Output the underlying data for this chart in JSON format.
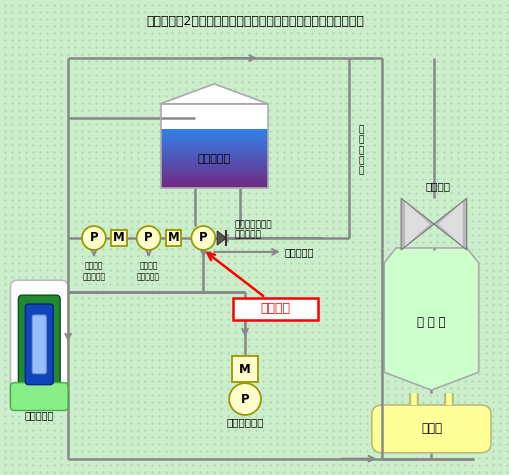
{
  "title": "伊方発電所2号機　タービン動補助給水ポンプまわり概略系統図",
  "bg_color": "#cceecc",
  "lc": "#888888",
  "pump_fill": "#ffffcc",
  "pump_edge": "#999900",
  "condenser_fill": "#ccffcc",
  "condenser_edge": "#aaaaaa",
  "tank_water_top": "#ddeeff",
  "tank_water_bot": "#3377dd",
  "deae_fill": "#ffff99",
  "deae_edge": "#bbbb77",
  "turbine_gray1": "#cccccc",
  "turbine_gray2": "#888888",
  "label_title": "伊方発電所2号機　タービン動補助給水ポンプまわり概略系統図",
  "label_tank": "復水タンク",
  "label_turbine": "タービン",
  "label_condenser": "復 水 器",
  "label_deaerator": "脱気器",
  "label_sg": "蒸気発生器",
  "label_main_pump": "主給水ポンプ",
  "label_elec1": "電動補助\n給水ポンプ",
  "label_elec2": "電動補助\n給水ポンプ",
  "label_turb_pump": "タービン動補助\n給水ポンプ",
  "label_atm": "大気へ放出",
  "label_steam": "駆\n動\n用\n蒸\n気",
  "label_highlight": "当該箇所"
}
